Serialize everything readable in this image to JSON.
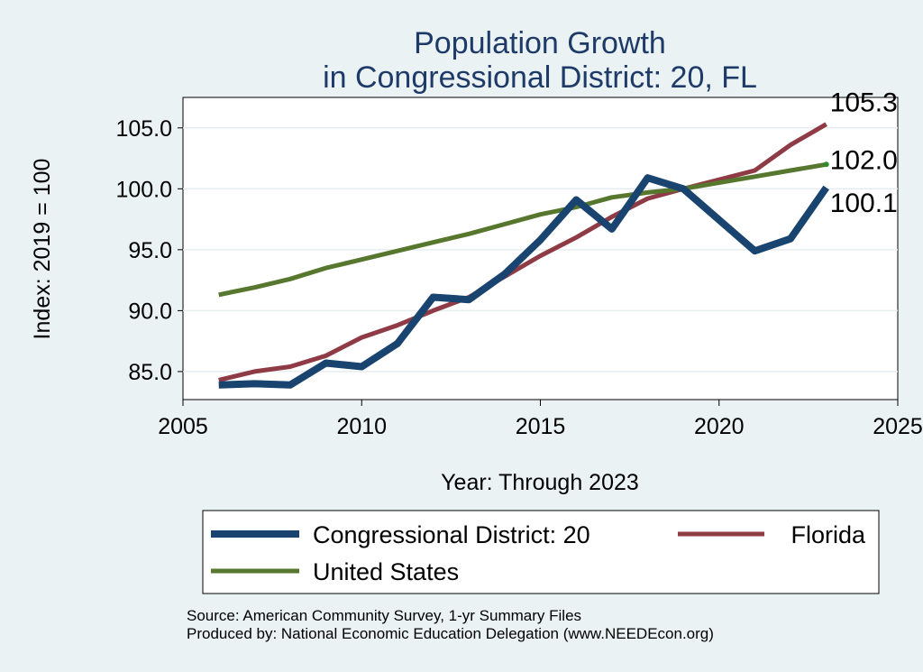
{
  "chart_data": {
    "type": "line",
    "title": [
      "Population Growth",
      "in Congressional District: 20, FL"
    ],
    "xlabel": "Year: Through 2023",
    "ylabel": "Index: 2019 = 100",
    "xlim": [
      2005,
      2025
    ],
    "ylim": [
      82.7,
      107.5
    ],
    "xticks": [
      2005,
      2010,
      2015,
      2020,
      2025
    ],
    "yticks": [
      85.0,
      90.0,
      95.0,
      100.0,
      105.0
    ],
    "ytick_labels": [
      "85.0",
      "90.0",
      "95.0",
      "100.0",
      "105.0"
    ],
    "grid": true,
    "legend_position": "bottom",
    "series": [
      {
        "name": "Congressional District: 20",
        "color": "#1a4470",
        "x": [
          2006,
          2007,
          2008,
          2009,
          2010,
          2011,
          2012,
          2013,
          2014,
          2015,
          2016,
          2017,
          2018,
          2019,
          2021,
          2022,
          2023
        ],
        "y": [
          83.9,
          84.0,
          83.9,
          85.7,
          85.4,
          87.3,
          91.1,
          90.9,
          93.0,
          95.8,
          99.1,
          96.7,
          100.9,
          100.0,
          94.9,
          95.9,
          100.1
        ],
        "end_label": "100.1"
      },
      {
        "name": "Florida",
        "color": "#8f3b45",
        "x": [
          2006,
          2007,
          2008,
          2009,
          2010,
          2011,
          2012,
          2013,
          2014,
          2015,
          2016,
          2017,
          2018,
          2019,
          2021,
          2022,
          2023
        ],
        "y": [
          84.3,
          85.0,
          85.4,
          86.3,
          87.8,
          88.8,
          90.0,
          91.1,
          92.8,
          94.5,
          96.0,
          97.7,
          99.2,
          100.0,
          101.5,
          103.6,
          105.3
        ],
        "end_label": "105.3"
      },
      {
        "name": "United States",
        "color": "#56772d",
        "x": [
          2006,
          2007,
          2008,
          2009,
          2010,
          2011,
          2012,
          2013,
          2014,
          2015,
          2016,
          2017,
          2018,
          2019,
          2021,
          2022,
          2023
        ],
        "y": [
          91.3,
          91.9,
          92.6,
          93.5,
          94.2,
          94.9,
          95.6,
          96.3,
          97.1,
          97.9,
          98.5,
          99.3,
          99.7,
          100.0,
          101.0,
          101.5,
          102.0
        ],
        "end_label": "102.0"
      }
    ]
  },
  "source_lines": [
    "Source: American Community Survey, 1-yr Summary Files",
    "Produced by: National Economic Education Delegation (www.NEEDEcon.org)"
  ]
}
